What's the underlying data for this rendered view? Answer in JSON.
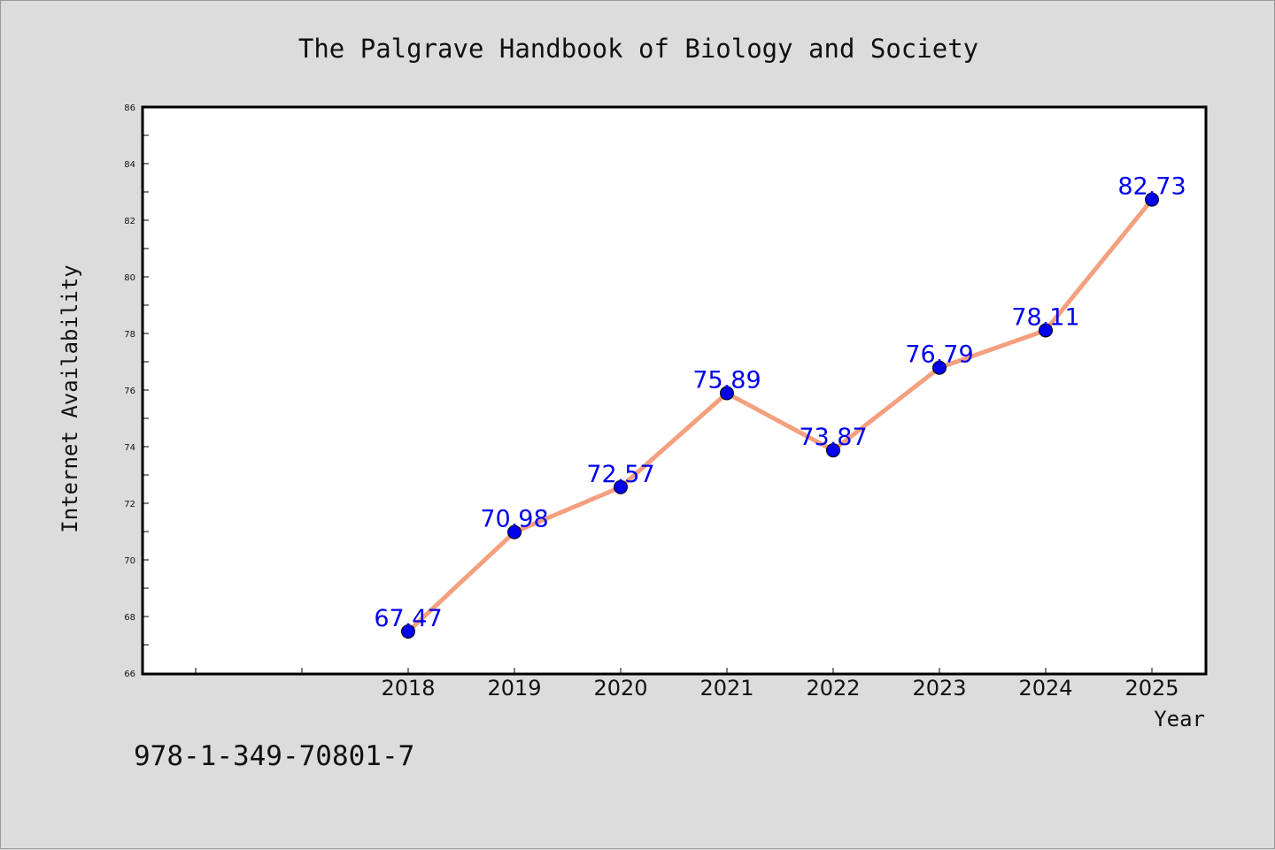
{
  "chart_data": {
    "type": "line",
    "title": "The Palgrave Handbook of Biology and Society",
    "xlabel": "Year",
    "ylabel": "Internet Availability",
    "categories": [
      "2018",
      "2019",
      "2020",
      "2021",
      "2022",
      "2023",
      "2024",
      "2025"
    ],
    "series": [
      {
        "values": [
          67.47,
          70.98,
          72.57,
          75.89,
          73.87,
          76.79,
          78.11,
          82.73
        ]
      }
    ],
    "data_labels": [
      "67.47",
      "70.98",
      "72.57",
      "75.89",
      "73.87",
      "76.79",
      "78.11",
      "82.73"
    ],
    "ylim": [
      66,
      86
    ],
    "yticks": [
      "66",
      "68",
      "70",
      "72",
      "74",
      "76",
      "78",
      "80",
      "82",
      "84",
      "86"
    ],
    "grid": false,
    "colors": {
      "line": "#f4a07e",
      "marker": "#0000ee",
      "label": "#0000ee"
    }
  },
  "annotation": "978-1-349-70801-7"
}
